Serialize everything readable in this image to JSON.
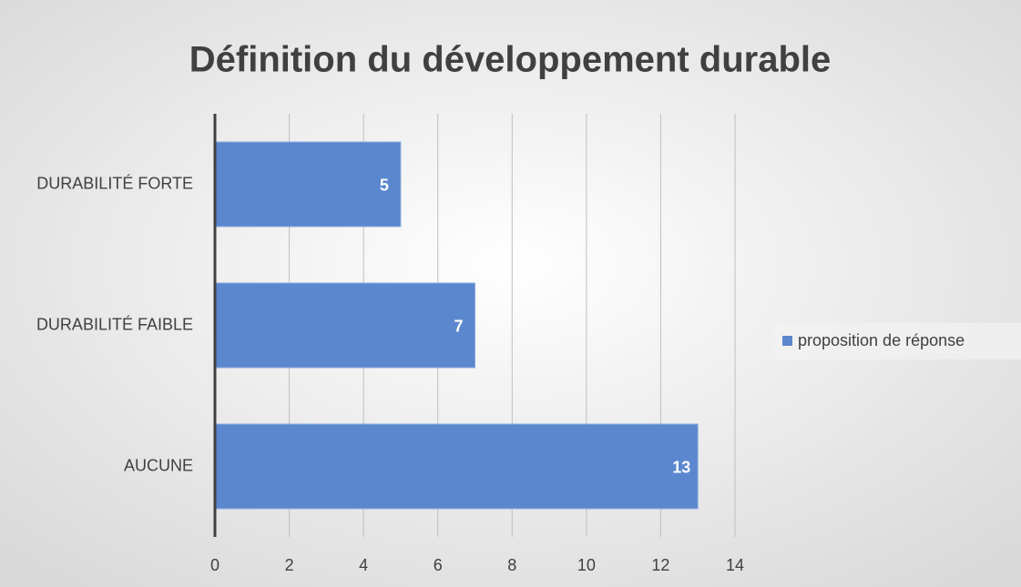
{
  "chart_data": {
    "type": "hbar",
    "title": "Définition du développement durable",
    "categories": [
      "DURABILITÉ FORTE",
      "DURABILITÉ FAIBLE",
      "AUCUNE"
    ],
    "series": [
      {
        "name": "proposition de réponse",
        "color": "#5b87cf",
        "values": [
          5,
          7,
          13
        ]
      }
    ],
    "xlim": [
      0,
      14
    ],
    "xticks": [
      0,
      2,
      4,
      6,
      8,
      10,
      12,
      14
    ],
    "grid": true,
    "legend": "right",
    "data_labels": true
  }
}
